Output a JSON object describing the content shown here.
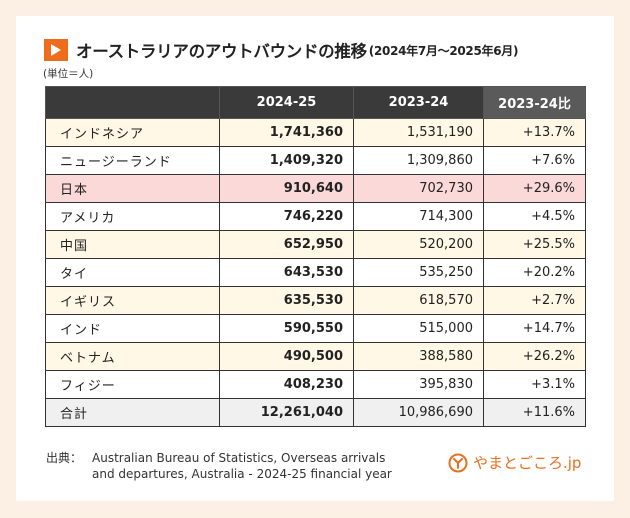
{
  "header": {
    "title": "オーストラリアのアウトバウンドの推移",
    "subtitle": "(2024年7月～2025年6月)",
    "unit": "(単位＝人)"
  },
  "table": {
    "columns": [
      "",
      "2024-25",
      "2023-24",
      "2023-24比"
    ],
    "rows": [
      {
        "name": "インドネシア",
        "current": "1,741,360",
        "previous": "1,531,190",
        "ratio": "+13.7%"
      },
      {
        "name": "ニュージーランド",
        "current": "1,409,320",
        "previous": "1,309,860",
        "ratio": "+7.6%"
      },
      {
        "name": "日本",
        "current": "910,640",
        "previous": "702,730",
        "ratio": "+29.6%"
      },
      {
        "name": "アメリカ",
        "current": "746,220",
        "previous": "714,300",
        "ratio": "+4.5%"
      },
      {
        "name": "中国",
        "current": "652,950",
        "previous": "520,200",
        "ratio": "+25.5%"
      },
      {
        "name": "タイ",
        "current": "643,530",
        "previous": "535,250",
        "ratio": "+20.2%"
      },
      {
        "name": "イギリス",
        "current": "635,530",
        "previous": "618,570",
        "ratio": "+2.7%"
      },
      {
        "name": "インド",
        "current": "590,550",
        "previous": "515,000",
        "ratio": "+14.7%"
      },
      {
        "name": "ベトナム",
        "current": "490,500",
        "previous": "388,580",
        "ratio": "+26.2%"
      },
      {
        "name": "フィジー",
        "current": "408,230",
        "previous": "395,830",
        "ratio": "+3.1%"
      }
    ],
    "total": {
      "name": "合計",
      "current": "12,261,040",
      "previous": "10,986,690",
      "ratio": "+11.6%"
    }
  },
  "footer": {
    "source_label": "出典：",
    "source_line1": "Australian Bureau of Statistics, Overseas arrivals",
    "source_line2": "and departures, Australia - 2024-25 financial year",
    "logo_text": "やまとごころ.jp"
  },
  "colors": {
    "accent": "#ef6c1d",
    "header_bg": "#3a3a3a",
    "alt_row": "#fff8e6",
    "highlight_row": "#fbd9d9",
    "total_row": "#f0f0f0"
  }
}
